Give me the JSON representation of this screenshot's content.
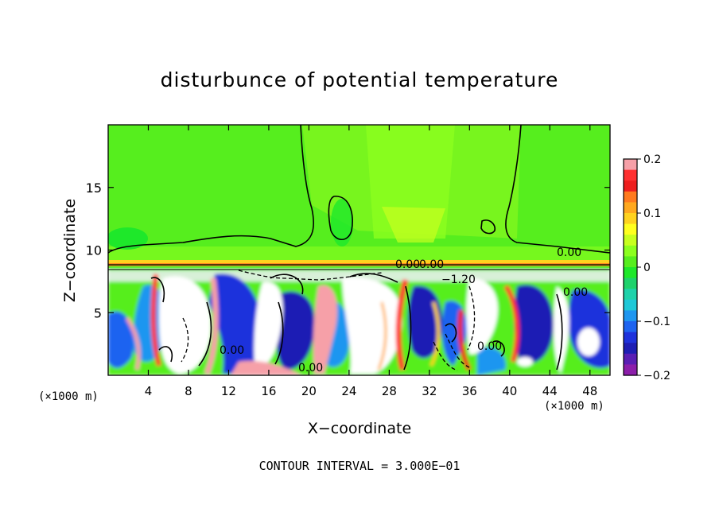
{
  "chart_data": {
    "type": "heatmap",
    "title": "disturbunce of potential temperature",
    "xlabel": "X−coordinate",
    "ylabel": "Z−coordinate",
    "x_unit": "(×1000 m)",
    "xlim": [
      0,
      50
    ],
    "ylim": [
      0,
      20
    ],
    "x_ticks": [
      4,
      8,
      12,
      16,
      20,
      24,
      28,
      32,
      36,
      40,
      44,
      48
    ],
    "y_ticks": [
      5,
      10,
      15
    ],
    "colorbar": {
      "range": [
        -0.2,
        0.2
      ],
      "tick_values": [
        0.2,
        0.1,
        0,
        -0.1,
        -0.2
      ],
      "tick_labels": [
        "0.2",
        "0.1",
        "0",
        "−0.1",
        "−0.2"
      ],
      "colors": [
        "#f6a0a8",
        "#ff3030",
        "#ee1e1e",
        "#ff7a1e",
        "#ffa81e",
        "#ffd21e",
        "#ffff1e",
        "#c8ff1e",
        "#8cff1e",
        "#56ee1e",
        "#1ee82a",
        "#1ed26c",
        "#1ed2aa",
        "#1ec8d8",
        "#1e96f0",
        "#1e64f0",
        "#1e32dc",
        "#1e1eb4",
        "#5a1eb4",
        "#8c1eaa"
      ]
    },
    "contour_labels": [
      "0.00",
      "0.00",
      "0.00",
      "−1.20",
      "0.00",
      "0.00",
      "0.00",
      "0.00"
    ],
    "contour_interval_note": "CONTOUR INTERVAL = 3.000E−01"
  }
}
